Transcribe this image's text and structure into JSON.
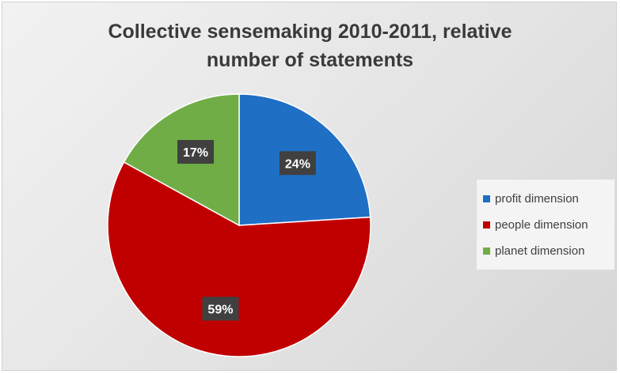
{
  "chart_data": {
    "type": "pie",
    "title": "Collective sensemaking 2010-2011, relative number of statements",
    "title_lines": [
      "Collective sensemaking 2010-2011, relative",
      "number of statements"
    ],
    "categories": [
      "profit dimension",
      "people dimension",
      "planet dimension"
    ],
    "values": [
      24,
      59,
      17
    ],
    "labels": [
      "24%",
      "59%",
      "17%"
    ],
    "colors": [
      "#1f6fc5",
      "#c00000",
      "#70ad47"
    ],
    "legend_position": "right"
  }
}
